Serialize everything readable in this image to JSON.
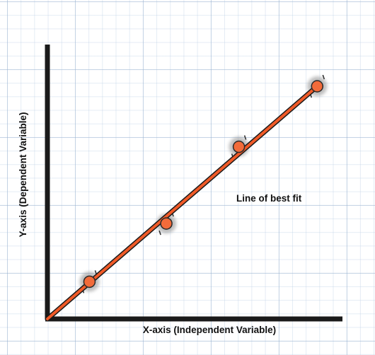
{
  "chart_data": {
    "type": "scatter",
    "title": "",
    "xlabel": "X-axis (Independent Variable)",
    "ylabel": "Y-axis (Dependent Variable)",
    "annotation": "Line of best fit",
    "grid": true,
    "xlim": [
      0,
      10
    ],
    "ylim": [
      0,
      10
    ],
    "points": [
      {
        "x": 1.45,
        "y": 1.6
      },
      {
        "x": 4.1,
        "y": 4.1
      },
      {
        "x": 6.6,
        "y": 7.4
      },
      {
        "x": 9.3,
        "y": 10.0
      }
    ],
    "fit_line": {
      "x": [
        0,
        9.3
      ],
      "y": [
        0,
        10.0
      ]
    },
    "colors": {
      "line": "#f05a28",
      "line_edge": "#1a1a1a",
      "point": "#f26b3a",
      "smudge": "#8a8a8a",
      "axis": "#1a1a1a",
      "grid": "#a9c0dc"
    }
  }
}
